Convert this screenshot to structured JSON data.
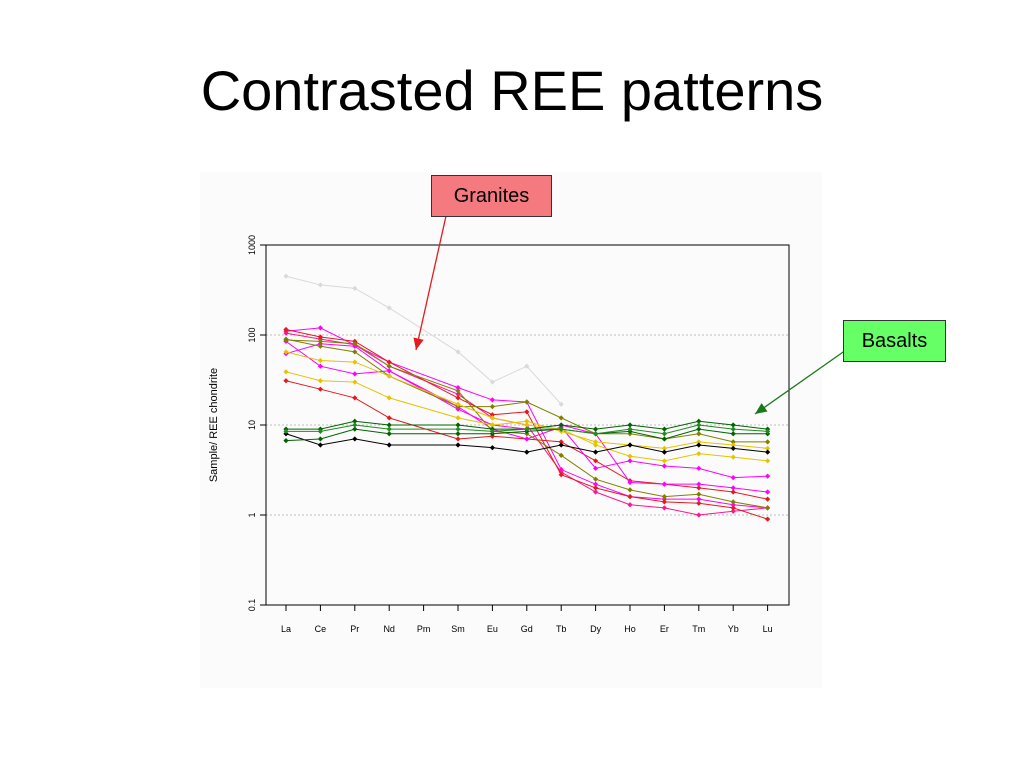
{
  "title": "Contrasted REE patterns",
  "callouts": {
    "granites": "Granites",
    "basalts": "Basalts"
  },
  "colors": {
    "granite_arrow": "#e41a1c",
    "basalt_arrow": "#1a7a1a",
    "granite_callout_bg": "#f47a80",
    "basalt_callout_bg": "#66ff66",
    "plot_background": "#fbfbfb",
    "gridline": "#bdbdbd"
  },
  "chart_data": {
    "type": "line",
    "title": "",
    "xlabel": "",
    "ylabel": "Sample/ REE chondrite",
    "y_scale": "log",
    "ylim": [
      0.1,
      1000
    ],
    "y_ticks": [
      "0.1",
      "1",
      "10",
      "100",
      "1000"
    ],
    "grid": "horizontal dotted at 1, 10, 100",
    "categories": [
      "La",
      "Ce",
      "Pr",
      "Nd",
      "Pm",
      "Sm",
      "Eu",
      "Gd",
      "Tb",
      "Dy",
      "Ho",
      "Er",
      "Tm",
      "Yb",
      "Lu"
    ],
    "series": [
      {
        "color": "#d9d9d9",
        "values": [
          450,
          360,
          330,
          200,
          null,
          65,
          30,
          45,
          17,
          null,
          null,
          null,
          null,
          null,
          null
        ]
      },
      {
        "color": "#ff00ff",
        "values": [
          110,
          120,
          null,
          50,
          null,
          26,
          19,
          18,
          3.2,
          2.2,
          1.6,
          1.5,
          1.5,
          1.3,
          1.2
        ]
      },
      {
        "color": "#ff1493",
        "values": [
          105,
          90,
          78,
          45,
          null,
          22,
          12,
          10,
          3.0,
          1.8,
          1.3,
          1.2,
          1.0,
          1.1,
          1.2
        ]
      },
      {
        "color": "#e41a1c",
        "values": [
          115,
          95,
          85,
          50,
          null,
          20,
          13,
          14,
          2.8,
          2.0,
          1.6,
          1.4,
          1.35,
          1.2,
          0.9
        ]
      },
      {
        "color": "#e41a1c",
        "values": [
          31,
          25,
          20,
          12,
          null,
          7,
          7.5,
          7.0,
          6.5,
          4.0,
          2.4,
          2.2,
          2.0,
          1.8,
          1.5
        ]
      },
      {
        "color": "#ff00ff",
        "values": [
          85,
          45,
          37,
          40,
          null,
          16,
          9,
          7,
          9.5,
          3.3,
          4.0,
          3.5,
          3.3,
          2.6,
          2.7
        ]
      },
      {
        "color": "#ff00ff",
        "values": [
          62,
          80,
          75,
          40,
          null,
          15,
          10,
          9,
          10,
          8,
          2.3,
          2.2,
          2.2,
          2.0,
          1.8
        ]
      },
      {
        "color": "#808000",
        "values": [
          90,
          75,
          65,
          35,
          null,
          16,
          16,
          18,
          12,
          8,
          8,
          7,
          8,
          6.5,
          6.5
        ]
      },
      {
        "color": "#808000",
        "values": [
          88,
          85,
          80,
          45,
          null,
          24,
          8.5,
          8,
          4.6,
          2.5,
          1.9,
          1.6,
          1.7,
          1.4,
          1.2
        ]
      },
      {
        "color": "#e6c300",
        "values": [
          65,
          52,
          50,
          35,
          null,
          17,
          12,
          10,
          9,
          6,
          4.5,
          4.0,
          4.8,
          4.4,
          4.0
        ]
      },
      {
        "color": "#e6c300",
        "values": [
          39,
          31,
          30,
          20,
          null,
          12,
          10,
          11,
          8.5,
          6.5,
          6.0,
          5.5,
          6.5,
          6.0,
          5.5
        ]
      },
      {
        "color": "#000000",
        "values": [
          8,
          6,
          7,
          6,
          null,
          6,
          5.6,
          5,
          6,
          5,
          6,
          5,
          6,
          5.5,
          5
        ]
      },
      {
        "color": "#006400",
        "values": [
          9,
          9,
          11,
          10,
          null,
          10,
          9,
          9,
          10,
          9,
          10,
          9,
          11,
          10,
          9
        ]
      },
      {
        "color": "#006400",
        "values": [
          6.7,
          7,
          9,
          8,
          null,
          8,
          8,
          8.5,
          9,
          8,
          8.5,
          7,
          9,
          8,
          8
        ]
      },
      {
        "color": "#228b22",
        "values": [
          8.5,
          8.5,
          10,
          9,
          null,
          9,
          8.5,
          9,
          9,
          8,
          9,
          8,
          10,
          9,
          8.5
        ]
      }
    ]
  }
}
